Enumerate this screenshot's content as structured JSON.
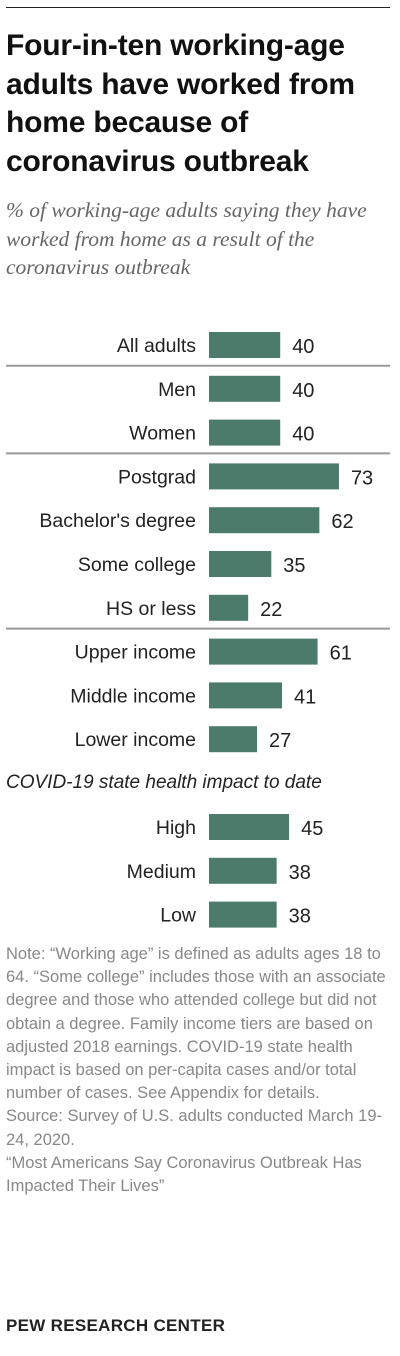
{
  "title": "Four-in-ten working-age adults have worked from home because of coronavirus outbreak",
  "subtitle": "% of working-age adults saying they have worked from home as a result of the coronavirus outbreak",
  "colors": {
    "bar": "#4c7b6c",
    "divider": "#999999"
  },
  "chart_data": {
    "type": "bar",
    "orientation": "horizontal",
    "xlim": [
      0,
      100
    ],
    "groups": [
      {
        "heading": "",
        "categories": [
          "All adults"
        ],
        "values": [
          40
        ]
      },
      {
        "heading": "",
        "categories": [
          "Men",
          "Women"
        ],
        "values": [
          40,
          40
        ]
      },
      {
        "heading": "",
        "categories": [
          "Postgrad",
          "Bachelor's degree",
          "Some college",
          "HS or less"
        ],
        "values": [
          73,
          62,
          35,
          22
        ]
      },
      {
        "heading": "",
        "categories": [
          "Upper income",
          "Middle income",
          "Lower income"
        ],
        "values": [
          61,
          41,
          27
        ]
      },
      {
        "heading": "COVID-19 state health impact to date",
        "categories": [
          "High",
          "Medium",
          "Low"
        ],
        "values": [
          45,
          38,
          38
        ]
      }
    ]
  },
  "note": "Note: “Working age” is defined as adults ages 18 to 64. “Some college” includes those with an associate degree and those who attended college but did not obtain a degree. Family income tiers are based on adjusted 2018 earnings. COVID-19 state health impact is based on per-capita cases and/or total number of cases. See Appendix for details.",
  "source": "Source: Survey of U.S. adults conducted March 19-24, 2020.",
  "report": "“Most Americans Say Coronavirus Outbreak Has Impacted Their Lives”",
  "footer": "PEW RESEARCH CENTER"
}
